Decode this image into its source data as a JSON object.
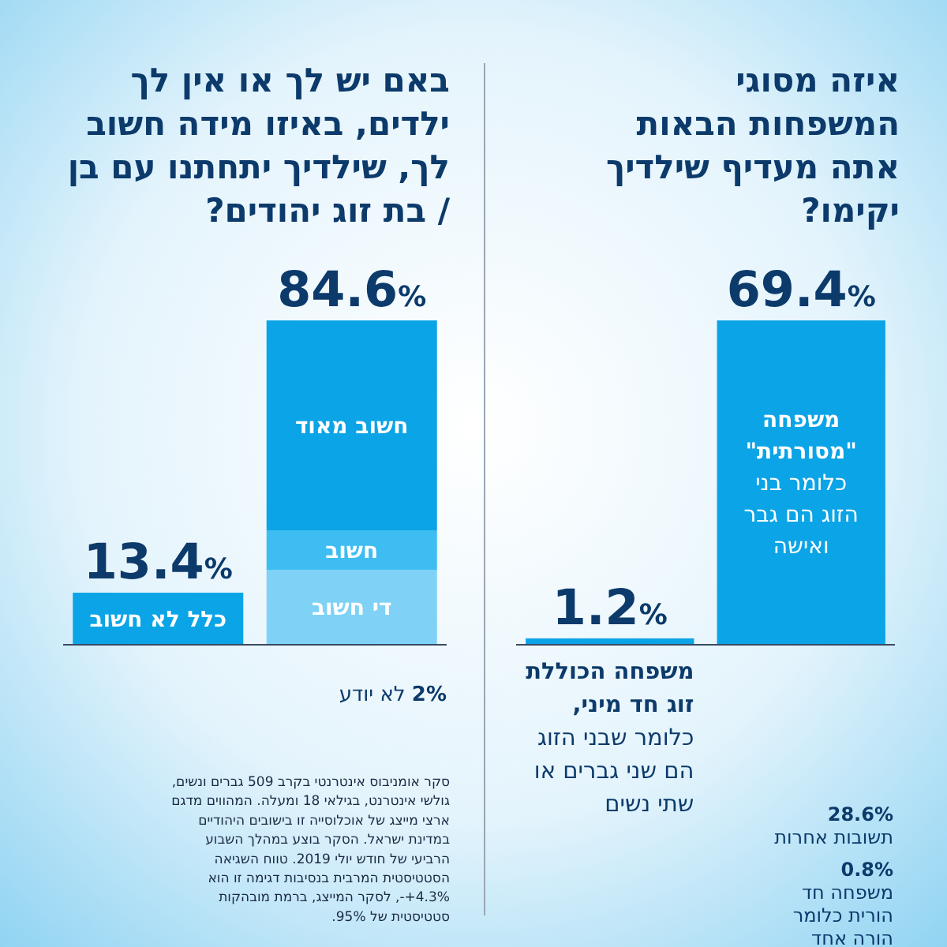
{
  "chart_data": [
    {
      "type": "bar",
      "title": "איזה מסוגי המשפחות הבאות אתה מעדיף שילדיך יקימו?",
      "categories": [
        null,
        null
      ],
      "stacked": true,
      "series": [
        {
          "name": "משפחה הכוללת זוג חד מיני, כלומר שבני הזוג הם שני גברים או שתי נשים",
          "color": "#0ba4e6",
          "values": [
            1.2,
            null
          ],
          "value_labels": [
            "1.2%",
            null
          ]
        },
        {
          "name": "משפחה \"מסורתית\" כלומר בני הזוג הם גבר ואישה",
          "color": "#0ba4e6",
          "values": [
            null,
            69.4
          ],
          "value_labels": [
            null,
            "69.4%"
          ]
        }
      ],
      "annotations": [
        "28.6% תשובות אחרות",
        "0.8% משפחה חד הורית כלומר הורה אחד"
      ]
    },
    {
      "type": "bar",
      "title": "באם יש לך או אין לך ילדים, באיזו מידה חשוב לך, שילדיך יתחתנו עם בן / בת זוג יהודים?",
      "categories": [
        null,
        null
      ],
      "stacked": true,
      "series": [
        {
          "name": "כלל לא חשוב",
          "color": "#0ba4e6",
          "values": [
            13.4,
            null
          ],
          "value_labels": [
            "13.4%",
            null
          ]
        },
        {
          "name": "די חשוב",
          "color": "#7fd2f6",
          "values": [
            null,
            19.4
          ]
        },
        {
          "name": "חשוב",
          "color": "#3dbdf2",
          "values": [
            null,
            10.3
          ]
        },
        {
          "name": "חשוב מאוד",
          "color": "#0ba4e6",
          "values": [
            null,
            54.9
          ]
        }
      ],
      "totals": [
        null,
        "84.6%"
      ],
      "annotations": [
        "2% לא יודע",
        "סקר אומניבוס אינטרנטי בקרב 509 גברים ונשים, גולשי אינטרנט, בגילאי 18 ומעלה. המהווים מדגם ארצי מייצג של אוכלוסייה זו בישובים היהודיים במדינת ישראל. הסקר בוצע במהלך השבוע הרביעי של חודש יולי 2019. טווח השגיאה הסטטיסטית המרבית בנסיבות דגימה זו הוא 4.3%+-, לסקר המייצג, ברמת מובהקות סטטיסטית של 95%."
      ]
    }
  ]
}
